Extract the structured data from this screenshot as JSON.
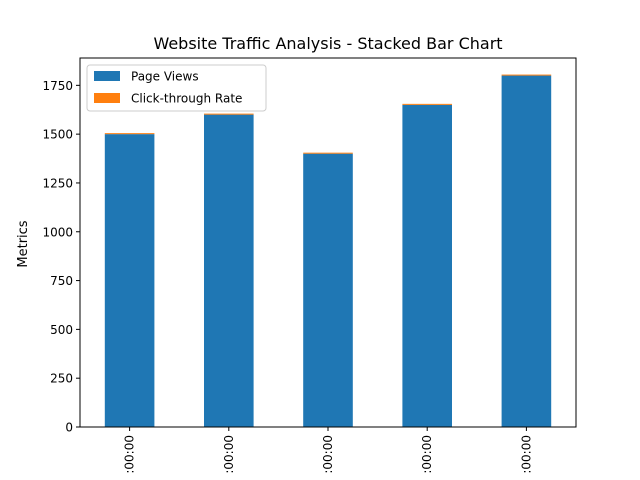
{
  "chart_data": {
    "type": "bar",
    "stacked": true,
    "title": "Website Traffic Analysis - Stacked Bar Chart",
    "xlabel": "",
    "ylabel": "Metrics",
    "categories": [
      ":00:00",
      ":00:00",
      ":00:00",
      ":00:00",
      ":00:00"
    ],
    "series": [
      {
        "name": "Page Views",
        "color": "#1f77b4",
        "values": [
          1500,
          1600,
          1400,
          1650,
          1800
        ]
      },
      {
        "name": "Click-through Rate",
        "color": "#ff7f0e",
        "values": [
          2,
          3,
          4,
          1,
          5
        ]
      }
    ],
    "ylim": [
      0,
      1890
    ],
    "yticks": [
      0,
      250,
      500,
      750,
      1000,
      1250,
      1500,
      1750
    ],
    "grid": false,
    "legend": "top-left"
  }
}
